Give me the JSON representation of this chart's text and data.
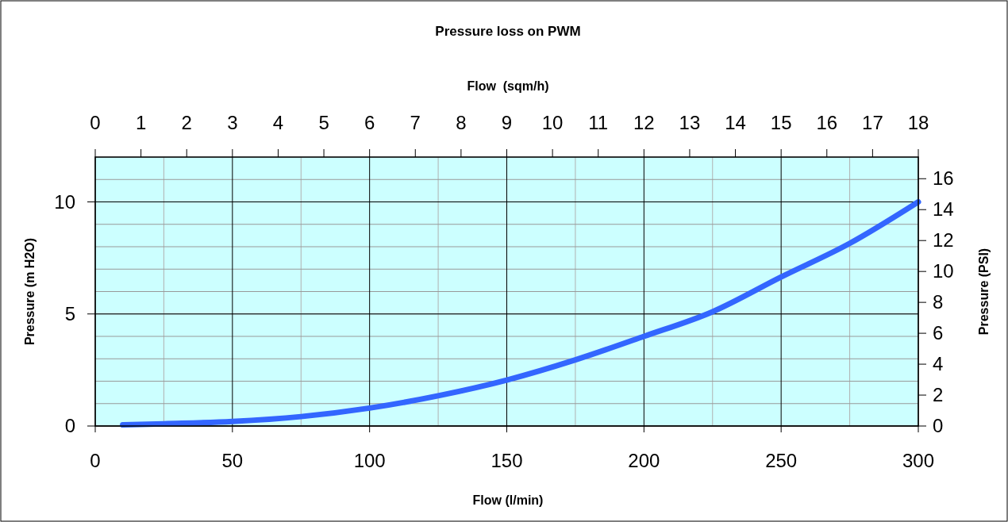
{
  "chart_data": {
    "type": "line",
    "title": "Pressure loss on PWM",
    "xlabel": "Flow (l/min)",
    "x2label": "Flow  (sqm/h)",
    "ylabel": "Pressure (m H2O)",
    "y2label": "Pressure (PSI)",
    "x": [
      10,
      25,
      50,
      75,
      100,
      125,
      150,
      175,
      200,
      225,
      250,
      275,
      300
    ],
    "series": [
      {
        "color": "#3366ff",
        "values": [
          0.05,
          0.1,
          0.2,
          0.42,
          0.8,
          1.35,
          2.05,
          2.95,
          4.0,
          5.1,
          6.65,
          8.15,
          10
        ]
      }
    ],
    "xlim": [
      0,
      300
    ],
    "xticks": [
      0,
      50,
      100,
      150,
      200,
      250,
      300
    ],
    "x2lim": [
      0,
      18
    ],
    "x2ticks": [
      0,
      1,
      2,
      3,
      4,
      5,
      6,
      7,
      8,
      9,
      10,
      11,
      12,
      13,
      14,
      15,
      16,
      17,
      18
    ],
    "ylim": [
      0,
      12
    ],
    "yticks": [
      0,
      5,
      10
    ],
    "y2lim": [
      0,
      17.4
    ],
    "y2ticks": [
      0,
      2,
      4,
      6,
      8,
      10,
      12,
      14,
      16
    ],
    "grid": true,
    "line_style": "solid",
    "marker": "none"
  }
}
